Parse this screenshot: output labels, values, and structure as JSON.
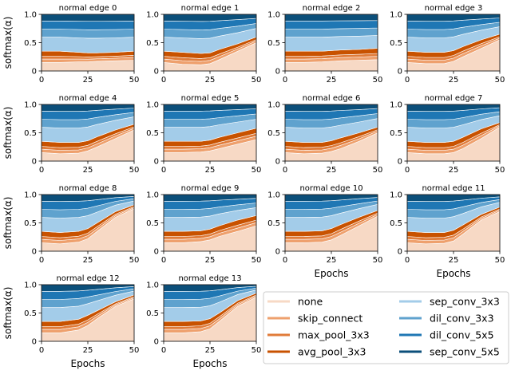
{
  "chart_data": {
    "type": "area",
    "stacked": true,
    "title": "",
    "xlabel": "Epochs",
    "ylabel": "softmax(α)",
    "xlim": [
      0,
      50
    ],
    "ylim": [
      0,
      1.0
    ],
    "xticks": [
      0,
      25,
      50
    ],
    "yticks": [
      0.0,
      0.5,
      1.0
    ],
    "xtick_labels": [
      "0",
      "25",
      "50"
    ],
    "ytick_labels": [
      "0",
      "0.5",
      "1.0"
    ],
    "x": [
      0,
      10,
      20,
      25,
      30,
      40,
      50
    ],
    "ops": [
      "none",
      "skip_connect",
      "max_pool_3x3",
      "avg_pool_3x3",
      "sep_conv_3x3",
      "dil_conv_3x3",
      "dil_conv_5x5",
      "sep_conv_5x5"
    ],
    "colors": [
      "#f7d9c5",
      "#eea06d",
      "#e07b39",
      "#c85200",
      "#a3cce9",
      "#5fa2ce",
      "#1f77b4",
      "#0b4f7a"
    ],
    "legend_loc": "lower-right",
    "panels": [
      {
        "title": "normal edge 0",
        "none": [
          0.15,
          0.15,
          0.16,
          0.16,
          0.17,
          0.18,
          0.19
        ],
        "scale": [
          0.35,
          0.35,
          0.33,
          0.32,
          0.32,
          0.33,
          0.35
        ]
      },
      {
        "title": "normal edge 1",
        "none": [
          0.15,
          0.12,
          0.11,
          0.13,
          0.2,
          0.35,
          0.5
        ],
        "scale": [
          0.35,
          0.33,
          0.31,
          0.32,
          0.38,
          0.48,
          0.6
        ]
      },
      {
        "title": "normal edge 2",
        "none": [
          0.15,
          0.15,
          0.16,
          0.17,
          0.18,
          0.19,
          0.2
        ],
        "scale": [
          0.35,
          0.35,
          0.35,
          0.36,
          0.37,
          0.38,
          0.4
        ]
      },
      {
        "title": "normal edge 3",
        "none": [
          0.15,
          0.13,
          0.13,
          0.17,
          0.25,
          0.4,
          0.55
        ],
        "scale": [
          0.35,
          0.33,
          0.33,
          0.36,
          0.43,
          0.55,
          0.65
        ]
      },
      {
        "title": "normal edge 4",
        "none": [
          0.15,
          0.13,
          0.14,
          0.18,
          0.25,
          0.4,
          0.55
        ],
        "scale": [
          0.35,
          0.33,
          0.33,
          0.36,
          0.43,
          0.55,
          0.65
        ]
      },
      {
        "title": "normal edge 5",
        "none": [
          0.15,
          0.15,
          0.16,
          0.18,
          0.22,
          0.3,
          0.38
        ],
        "scale": [
          0.35,
          0.35,
          0.35,
          0.37,
          0.42,
          0.5,
          0.58
        ]
      },
      {
        "title": "normal edge 6",
        "none": [
          0.15,
          0.13,
          0.14,
          0.17,
          0.22,
          0.35,
          0.5
        ],
        "scale": [
          0.35,
          0.33,
          0.33,
          0.36,
          0.41,
          0.5,
          0.6
        ]
      },
      {
        "title": "normal edge 7",
        "none": [
          0.15,
          0.13,
          0.13,
          0.15,
          0.22,
          0.4,
          0.6
        ],
        "scale": [
          0.35,
          0.33,
          0.33,
          0.35,
          0.42,
          0.57,
          0.68
        ]
      },
      {
        "title": "normal edge 8",
        "none": [
          0.15,
          0.13,
          0.16,
          0.22,
          0.35,
          0.6,
          0.75
        ],
        "scale": [
          0.35,
          0.33,
          0.35,
          0.4,
          0.5,
          0.7,
          0.82
        ]
      },
      {
        "title": "normal edge 9",
        "none": [
          0.15,
          0.15,
          0.17,
          0.2,
          0.26,
          0.35,
          0.45
        ],
        "scale": [
          0.35,
          0.35,
          0.36,
          0.39,
          0.45,
          0.55,
          0.63
        ]
      },
      {
        "title": "normal edge 10",
        "none": [
          0.15,
          0.15,
          0.16,
          0.2,
          0.28,
          0.45,
          0.62
        ],
        "scale": [
          0.35,
          0.35,
          0.36,
          0.4,
          0.47,
          0.6,
          0.72
        ]
      },
      {
        "title": "normal edge 11",
        "none": [
          0.15,
          0.13,
          0.14,
          0.18,
          0.3,
          0.55,
          0.7
        ],
        "scale": [
          0.35,
          0.33,
          0.33,
          0.37,
          0.46,
          0.65,
          0.78
        ]
      },
      {
        "title": "normal edge 12",
        "none": [
          0.15,
          0.15,
          0.2,
          0.28,
          0.4,
          0.62,
          0.75
        ],
        "scale": [
          0.35,
          0.35,
          0.39,
          0.46,
          0.54,
          0.7,
          0.82
        ]
      },
      {
        "title": "normal edge 13",
        "none": [
          0.15,
          0.15,
          0.17,
          0.22,
          0.35,
          0.62,
          0.78
        ],
        "scale": [
          0.35,
          0.35,
          0.36,
          0.4,
          0.5,
          0.72,
          0.85
        ]
      }
    ]
  }
}
